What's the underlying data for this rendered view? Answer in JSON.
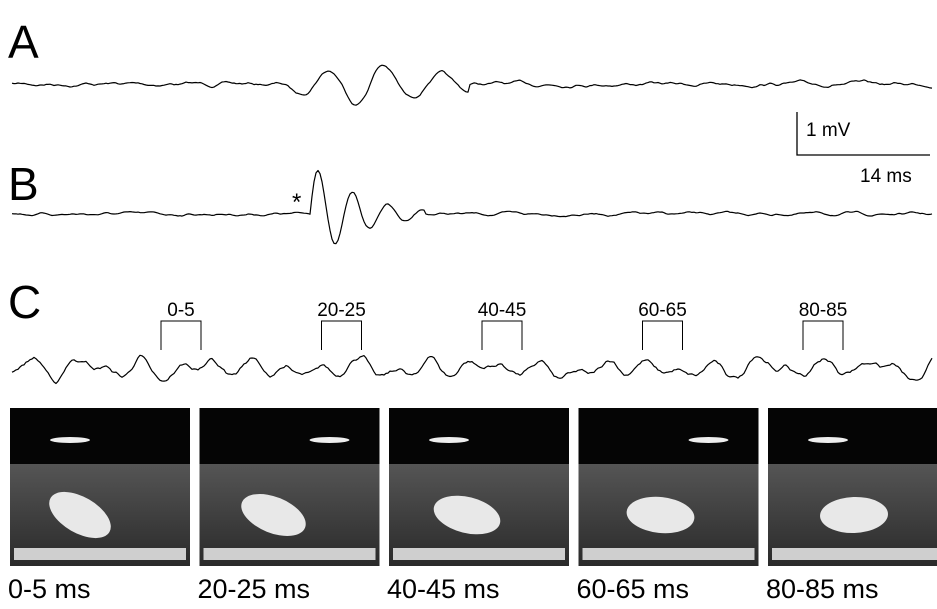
{
  "panels": [
    {
      "label": "A"
    },
    {
      "label": "B",
      "marker": "*"
    },
    {
      "label": "C",
      "windows": [
        "0-5",
        "20-25",
        "40-45",
        "60-65",
        "80-85"
      ]
    }
  ],
  "scale_bar": {
    "amplitude": "1 mV",
    "time": "14 ms"
  },
  "frames": [
    {
      "caption": "0-5 ms"
    },
    {
      "caption": "20-25 ms"
    },
    {
      "caption": "40-45 ms"
    },
    {
      "caption": "60-65 ms"
    },
    {
      "caption": "80-85 ms"
    }
  ]
}
